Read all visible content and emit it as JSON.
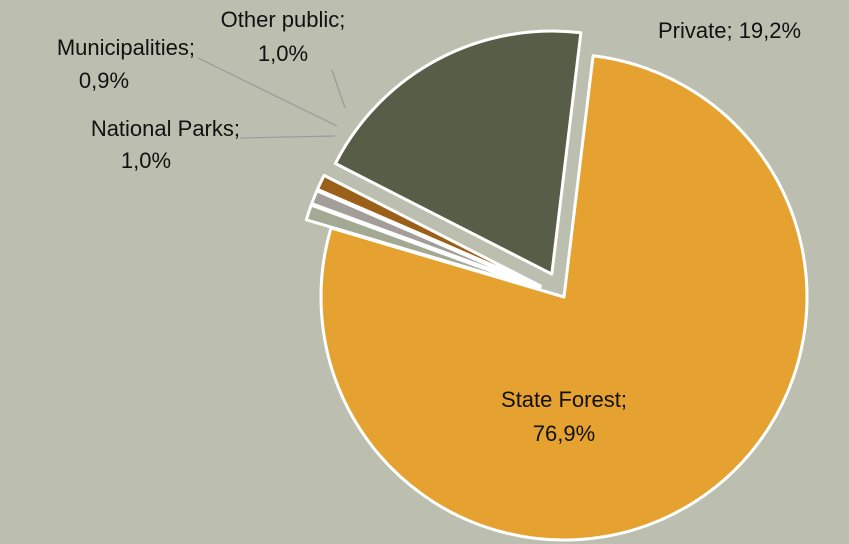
{
  "chart_data": {
    "type": "pie",
    "title": "",
    "slices": [
      {
        "name": "State Forest",
        "value": 76.9,
        "label_line1": "State Forest;",
        "label_line2": "76,9%",
        "color": "#e5a230"
      },
      {
        "name": "National Parks",
        "value": 1.0,
        "label_line1": "National Parks;",
        "label_line2": "1,0%",
        "color": "#a3a993"
      },
      {
        "name": "Municipalities",
        "value": 0.9,
        "label_line1": "Municipalities;",
        "label_line2": "0,9%",
        "color": "#a39e99"
      },
      {
        "name": "Other public",
        "value": 1.0,
        "label_line1": "Other public;",
        "label_line2": "1,0%",
        "color": "#9a6019"
      },
      {
        "name": "Private",
        "value": 19.2,
        "label_line1": "Private; 19,2%",
        "label_line2": "",
        "color": "#585d47"
      }
    ],
    "legend": "none",
    "colors": {
      "background": "#bcbfb0",
      "slice_border": "#ffffff",
      "leader_line": "#9a9a9a"
    }
  }
}
